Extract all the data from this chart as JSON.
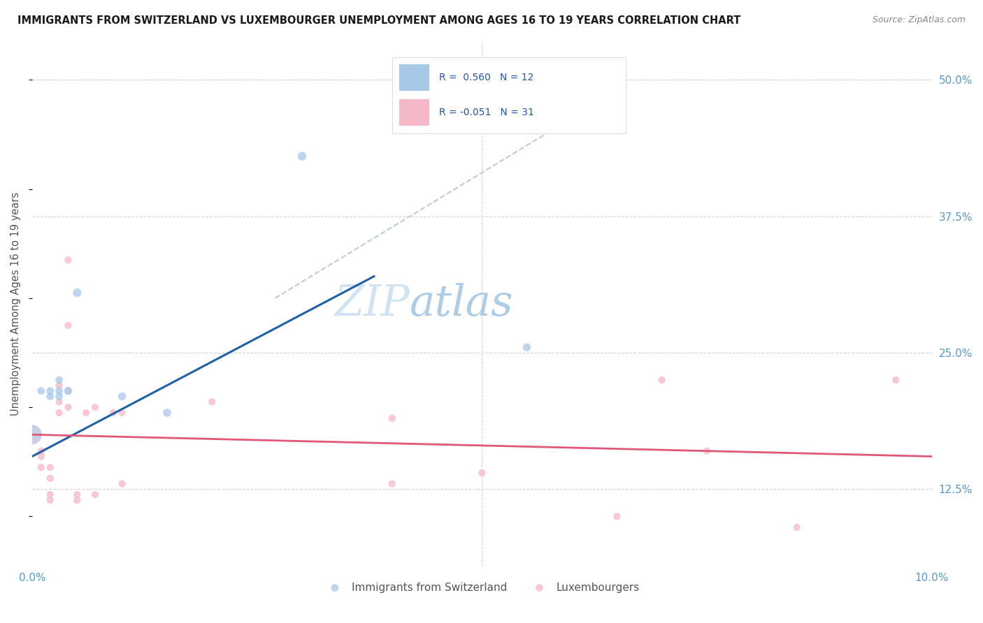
{
  "title": "IMMIGRANTS FROM SWITZERLAND VS LUXEMBOURGER UNEMPLOYMENT AMONG AGES 16 TO 19 YEARS CORRELATION CHART",
  "source": "Source: ZipAtlas.com",
  "ylabel": "Unemployment Among Ages 16 to 19 years",
  "xlim": [
    0.0,
    0.1
  ],
  "ylim": [
    0.055,
    0.535
  ],
  "ytick_labels_right": [
    "50.0%",
    "37.5%",
    "25.0%",
    "12.5%"
  ],
  "ytick_vals_right": [
    0.5,
    0.375,
    0.25,
    0.125
  ],
  "background_color": "#ffffff",
  "grid_color": "#cccccc",
  "blue_color": "#a8c8e8",
  "pink_color": "#f4b8c8",
  "blue_line_color": "#2060a8",
  "pink_line_color": "#e05878",
  "dashed_line_color": "#bbccdd",
  "swiss_points": [
    [
      0.001,
      0.215
    ],
    [
      0.002,
      0.215
    ],
    [
      0.002,
      0.21
    ],
    [
      0.003,
      0.225
    ],
    [
      0.003,
      0.215
    ],
    [
      0.003,
      0.21
    ],
    [
      0.004,
      0.215
    ],
    [
      0.005,
      0.305
    ],
    [
      0.01,
      0.21
    ],
    [
      0.015,
      0.195
    ],
    [
      0.03,
      0.43
    ],
    [
      0.055,
      0.255
    ]
  ],
  "swiss_sizes": [
    60,
    60,
    60,
    60,
    60,
    60,
    70,
    80,
    70,
    70,
    80,
    70
  ],
  "swiss_big_point": [
    0.0,
    0.175
  ],
  "swiss_big_size": 400,
  "lux_points": [
    [
      0.001,
      0.155
    ],
    [
      0.001,
      0.145
    ],
    [
      0.001,
      0.16
    ],
    [
      0.002,
      0.145
    ],
    [
      0.002,
      0.135
    ],
    [
      0.002,
      0.115
    ],
    [
      0.002,
      0.12
    ],
    [
      0.003,
      0.22
    ],
    [
      0.003,
      0.195
    ],
    [
      0.003,
      0.205
    ],
    [
      0.004,
      0.335
    ],
    [
      0.004,
      0.275
    ],
    [
      0.004,
      0.215
    ],
    [
      0.004,
      0.2
    ],
    [
      0.005,
      0.12
    ],
    [
      0.005,
      0.115
    ],
    [
      0.006,
      0.195
    ],
    [
      0.007,
      0.2
    ],
    [
      0.007,
      0.12
    ],
    [
      0.009,
      0.195
    ],
    [
      0.01,
      0.195
    ],
    [
      0.01,
      0.13
    ],
    [
      0.02,
      0.205
    ],
    [
      0.04,
      0.19
    ],
    [
      0.04,
      0.13
    ],
    [
      0.05,
      0.14
    ],
    [
      0.065,
      0.1
    ],
    [
      0.07,
      0.225
    ],
    [
      0.075,
      0.16
    ],
    [
      0.085,
      0.09
    ],
    [
      0.096,
      0.225
    ]
  ],
  "lux_sizes": [
    55,
    55,
    55,
    55,
    55,
    55,
    55,
    55,
    55,
    55,
    55,
    55,
    55,
    55,
    55,
    55,
    55,
    55,
    55,
    55,
    55,
    55,
    55,
    55,
    55,
    55,
    55,
    55,
    55,
    55,
    55
  ],
  "lux_big_point": [
    0.0,
    0.175
  ],
  "lux_big_size": 400,
  "blue_line_x": [
    0.0,
    0.038
  ],
  "blue_line_y": [
    0.155,
    0.32
  ],
  "dash_line_x": [
    0.027,
    0.063
  ],
  "dash_line_y": [
    0.3,
    0.48
  ],
  "pink_line_x": [
    0.0,
    0.1
  ],
  "pink_line_y": [
    0.175,
    0.155
  ]
}
